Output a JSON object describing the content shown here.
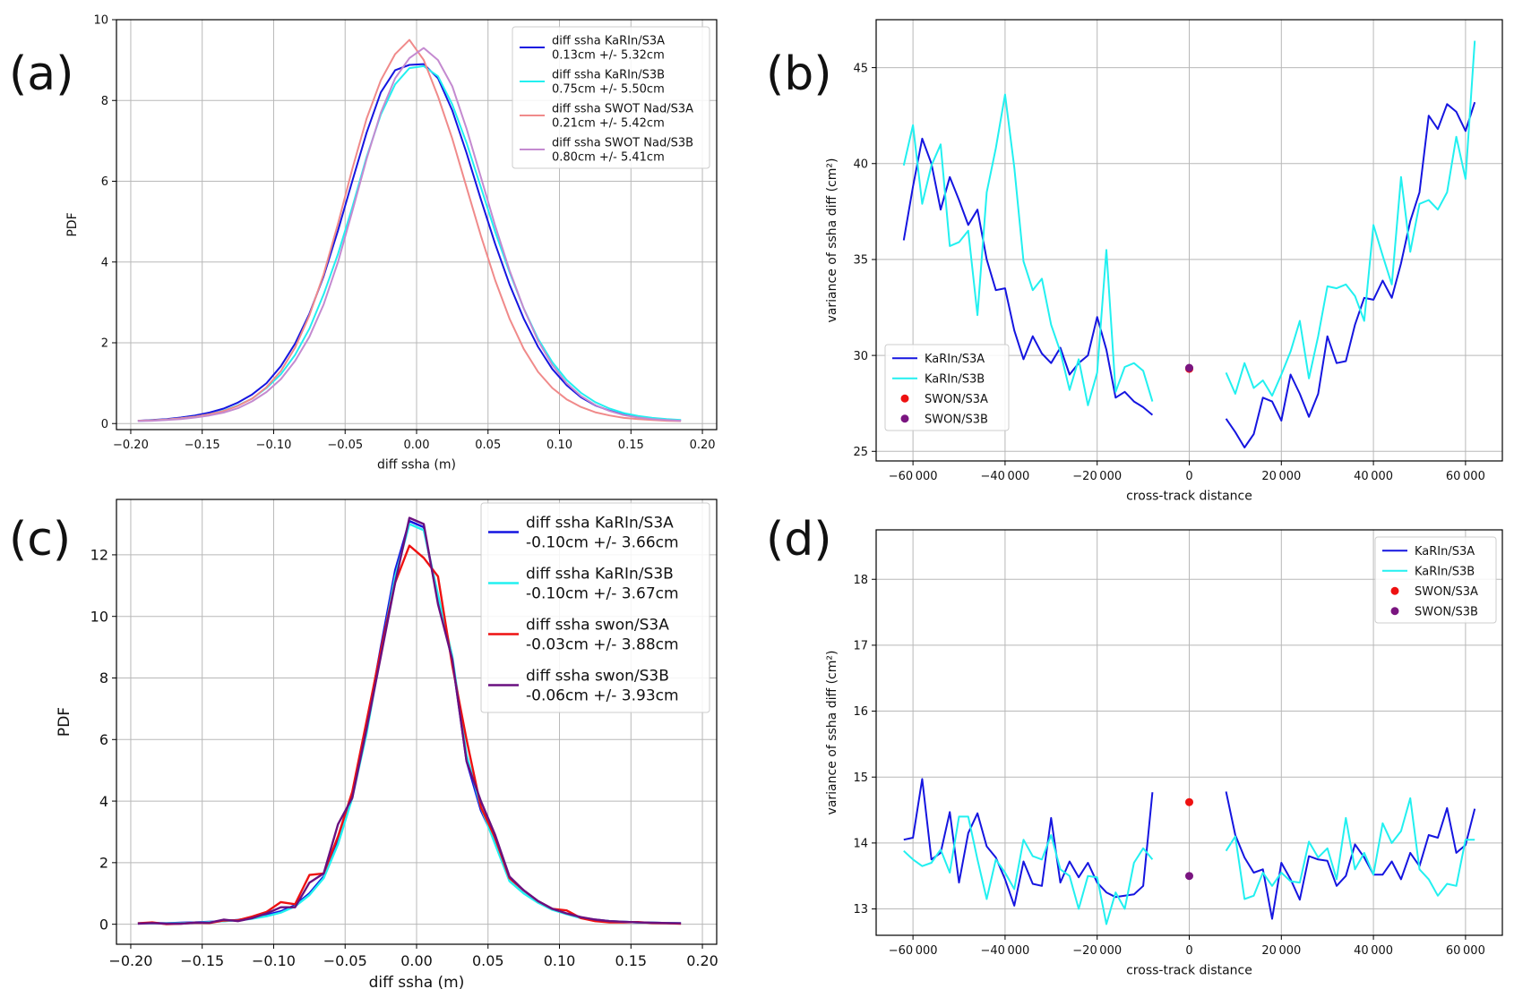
{
  "colors": {
    "KaRIn/S3A": "#1515e0",
    "KaRIn/S3B": "#22f0f0",
    "SWOT Nad/S3A": "#f08a8a",
    "SWOT Nad/S3B": "#c48ad0",
    "swon/S3A": "#ee1111",
    "swon/S3B": "#6a1080",
    "SWON/S3A": "#ee1111",
    "SWON/S3B": "#7a1580"
  },
  "chart_data": [
    {
      "panel_label": "(a)",
      "type": "line",
      "xlabel": "diff ssha (m)",
      "ylabel": "PDF",
      "xlim": [
        -0.21,
        0.21
      ],
      "ylim": [
        -0.15,
        10
      ],
      "xticks": [
        -0.2,
        -0.15,
        -0.1,
        -0.05,
        0.0,
        0.05,
        0.1,
        0.15,
        0.2
      ],
      "xtick_labels": [
        "−0.20",
        "−0.15",
        "−0.10",
        "−0.05",
        "0.00",
        "0.05",
        "0.10",
        "0.15",
        "0.20"
      ],
      "yticks": [
        0,
        2,
        4,
        6,
        8,
        10
      ],
      "ytick_labels": [
        "0",
        "2",
        "4",
        "6",
        "8",
        "10"
      ],
      "x": [
        -0.195,
        -0.185,
        -0.175,
        -0.165,
        -0.155,
        -0.145,
        -0.135,
        -0.125,
        -0.115,
        -0.105,
        -0.095,
        -0.085,
        -0.075,
        -0.065,
        -0.055,
        -0.045,
        -0.035,
        -0.025,
        -0.015,
        -0.005,
        0.005,
        0.015,
        0.025,
        0.035,
        0.045,
        0.055,
        0.065,
        0.075,
        0.085,
        0.095,
        0.105,
        0.115,
        0.125,
        0.135,
        0.145,
        0.155,
        0.165,
        0.175,
        0.185
      ],
      "series": [
        {
          "name": "KaRIn/S3A",
          "legend": [
            "diff ssha KaRIn/S3A",
            "0.13cm +/- 5.32cm"
          ],
          "values": [
            0.07,
            0.09,
            0.11,
            0.15,
            0.2,
            0.27,
            0.37,
            0.52,
            0.72,
            1.0,
            1.42,
            1.98,
            2.72,
            3.65,
            4.78,
            6.0,
            7.2,
            8.2,
            8.75,
            8.88,
            8.9,
            8.55,
            7.75,
            6.7,
            5.55,
            4.45,
            3.45,
            2.6,
            1.9,
            1.35,
            0.95,
            0.65,
            0.45,
            0.32,
            0.22,
            0.16,
            0.12,
            0.1,
            0.08
          ]
        },
        {
          "name": "KaRIn/S3B",
          "legend": [
            "diff ssha KaRIn/S3B",
            "0.75cm +/- 5.50cm"
          ],
          "values": [
            0.06,
            0.08,
            0.1,
            0.13,
            0.17,
            0.23,
            0.32,
            0.45,
            0.62,
            0.88,
            1.22,
            1.7,
            2.35,
            3.2,
            4.2,
            5.35,
            6.6,
            7.65,
            8.4,
            8.8,
            8.85,
            8.6,
            7.9,
            6.95,
            5.85,
            4.75,
            3.75,
            2.85,
            2.1,
            1.52,
            1.08,
            0.76,
            0.53,
            0.37,
            0.26,
            0.19,
            0.14,
            0.11,
            0.09
          ]
        },
        {
          "name": "SWOT Nad/S3A",
          "legend": [
            "diff ssha SWOT Nad/S3A",
            "0.21cm +/- 5.42cm"
          ],
          "values": [
            0.07,
            0.08,
            0.1,
            0.13,
            0.17,
            0.23,
            0.31,
            0.44,
            0.62,
            0.9,
            1.3,
            1.88,
            2.68,
            3.7,
            4.95,
            6.3,
            7.55,
            8.5,
            9.15,
            9.5,
            9.0,
            8.1,
            7.05,
            5.85,
            4.65,
            3.55,
            2.6,
            1.85,
            1.28,
            0.88,
            0.6,
            0.41,
            0.28,
            0.2,
            0.14,
            0.11,
            0.09,
            0.07,
            0.06
          ]
        },
        {
          "name": "SWOT Nad/S3B",
          "legend": [
            "diff ssha SWOT Nad/S3B",
            "0.80cm +/- 5.41cm"
          ],
          "values": [
            0.06,
            0.07,
            0.09,
            0.11,
            0.15,
            0.2,
            0.27,
            0.38,
            0.55,
            0.78,
            1.1,
            1.55,
            2.15,
            2.95,
            4.0,
            5.25,
            6.55,
            7.7,
            8.55,
            9.05,
            9.3,
            9.0,
            8.35,
            7.3,
            6.1,
            4.9,
            3.8,
            2.85,
            2.05,
            1.45,
            1.0,
            0.68,
            0.46,
            0.31,
            0.21,
            0.15,
            0.11,
            0.09,
            0.07
          ]
        }
      ]
    },
    {
      "panel_label": "(b)",
      "type": "line",
      "xlabel": "cross-track distance",
      "ylabel": "variance of ssha diff (cm²)",
      "xlim": [
        -68000,
        68000
      ],
      "ylim": [
        24.5,
        47.5
      ],
      "xticks": [
        -60000,
        -40000,
        -20000,
        0,
        20000,
        40000,
        60000
      ],
      "xtick_labels": [
        "−60 000",
        "−40 000",
        "−20 000",
        "0",
        "20 000",
        "40 000",
        "60 000"
      ],
      "yticks": [
        25,
        30,
        35,
        40,
        45
      ],
      "ytick_labels": [
        "25",
        "30",
        "35",
        "40",
        "45"
      ],
      "x": [
        -62000,
        -60000,
        -58000,
        -56000,
        -54000,
        -52000,
        -50000,
        -48000,
        -46000,
        -44000,
        -42000,
        -40000,
        -38000,
        -36000,
        -34000,
        -32000,
        -30000,
        -28000,
        -26000,
        -24000,
        -22000,
        -20000,
        -18000,
        -16000,
        -14000,
        -12000,
        -10000,
        -8000,
        8000,
        10000,
        12000,
        14000,
        16000,
        18000,
        20000,
        22000,
        24000,
        26000,
        28000,
        30000,
        32000,
        34000,
        36000,
        38000,
        40000,
        42000,
        44000,
        46000,
        48000,
        50000,
        52000,
        54000,
        56000,
        58000,
        60000,
        62000
      ],
      "series": [
        {
          "name": "KaRIn/S3A",
          "legend": [
            "KaRIn/S3A"
          ],
          "values": [
            36.0,
            38.8,
            41.3,
            40.0,
            37.6,
            39.3,
            38.1,
            36.8,
            37.6,
            35.0,
            33.4,
            33.5,
            31.3,
            29.8,
            31.0,
            30.1,
            29.6,
            30.4,
            29.0,
            29.6,
            30.0,
            32.0,
            30.3,
            27.8,
            28.1,
            27.6,
            27.3,
            26.9,
            26.7,
            26.0,
            25.2,
            25.9,
            27.8,
            27.6,
            26.6,
            29.0,
            28.0,
            26.8,
            28.0,
            31.0,
            29.6,
            29.7,
            31.6,
            33.0,
            32.9,
            33.9,
            33.0,
            34.8,
            37.0,
            38.5,
            42.5,
            41.8,
            43.1,
            42.7,
            41.7,
            43.2
          ]
        },
        {
          "name": "KaRIn/S3B",
          "legend": [
            "KaRIn/S3B"
          ],
          "values": [
            39.9,
            42.0,
            37.9,
            39.9,
            41.0,
            35.7,
            35.9,
            36.5,
            32.1,
            38.5,
            40.8,
            43.6,
            39.8,
            34.9,
            33.4,
            34.0,
            31.6,
            30.2,
            28.2,
            29.8,
            27.4,
            29.1,
            35.5,
            28.1,
            29.4,
            29.6,
            29.2,
            27.6,
            29.1,
            28.0,
            29.6,
            28.3,
            28.7,
            27.9,
            29.0,
            30.2,
            31.8,
            28.8,
            31.0,
            33.6,
            33.5,
            33.7,
            33.1,
            31.8,
            36.8,
            35.2,
            33.7,
            39.3,
            35.4,
            37.9,
            38.1,
            37.6,
            38.5,
            41.4,
            39.2,
            46.4
          ]
        },
        {
          "name": "SWON/S3A",
          "legend": [
            "SWON/S3A"
          ],
          "points": [
            [
              0,
              29.3
            ]
          ]
        },
        {
          "name": "SWON/S3B",
          "legend": [
            "SWON/S3B"
          ],
          "points": [
            [
              0,
              29.35
            ]
          ]
        }
      ]
    },
    {
      "panel_label": "(c)",
      "type": "line",
      "xlabel": "diff ssha (m)",
      "ylabel": "PDF",
      "xlim": [
        -0.21,
        0.21
      ],
      "ylim": [
        -0.65,
        13.8
      ],
      "xticks": [
        -0.2,
        -0.15,
        -0.1,
        -0.05,
        0.0,
        0.05,
        0.1,
        0.15,
        0.2
      ],
      "xtick_labels": [
        "−0.20",
        "−0.15",
        "−0.10",
        "−0.05",
        "0.00",
        "0.05",
        "0.10",
        "0.15",
        "0.20"
      ],
      "yticks": [
        0,
        2,
        4,
        6,
        8,
        10,
        12
      ],
      "ytick_labels": [
        "0",
        "2",
        "4",
        "6",
        "8",
        "10",
        "12"
      ],
      "x": [
        -0.195,
        -0.185,
        -0.175,
        -0.165,
        -0.155,
        -0.145,
        -0.135,
        -0.125,
        -0.115,
        -0.105,
        -0.095,
        -0.085,
        -0.075,
        -0.065,
        -0.055,
        -0.045,
        -0.035,
        -0.025,
        -0.015,
        -0.005,
        0.005,
        0.015,
        0.025,
        0.035,
        0.045,
        0.055,
        0.065,
        0.075,
        0.085,
        0.095,
        0.105,
        0.115,
        0.125,
        0.135,
        0.145,
        0.155,
        0.165,
        0.175,
        0.185
      ],
      "series": [
        {
          "name": "KaRIn/S3A",
          "legend": [
            "diff ssha KaRIn/S3A",
            "-0.10cm +/- 3.66cm"
          ],
          "values": [
            0.03,
            0.04,
            0.03,
            0.05,
            0.06,
            0.08,
            0.1,
            0.14,
            0.2,
            0.3,
            0.42,
            0.62,
            1.0,
            1.55,
            2.7,
            4.2,
            6.4,
            9.0,
            11.5,
            13.1,
            12.9,
            10.5,
            8.6,
            5.3,
            3.7,
            2.7,
            1.5,
            1.1,
            0.75,
            0.5,
            0.35,
            0.22,
            0.15,
            0.1,
            0.08,
            0.06,
            0.05,
            0.04,
            0.03
          ]
        },
        {
          "name": "KaRIn/S3B",
          "legend": [
            "diff ssha KaRIn/S3B",
            "-0.10cm +/- 3.67cm"
          ],
          "values": [
            0.03,
            0.03,
            0.03,
            0.04,
            0.05,
            0.07,
            0.1,
            0.13,
            0.18,
            0.26,
            0.38,
            0.58,
            0.95,
            1.5,
            2.6,
            4.1,
            6.2,
            8.8,
            11.3,
            13.0,
            12.8,
            10.7,
            8.7,
            5.5,
            3.8,
            2.6,
            1.4,
            1.0,
            0.7,
            0.47,
            0.33,
            0.2,
            0.14,
            0.1,
            0.08,
            0.06,
            0.05,
            0.04,
            0.03
          ]
        },
        {
          "name": "swon/S3A",
          "legend": [
            "diff ssha swon/S3A",
            "-0.03cm +/- 3.88cm"
          ],
          "values": [
            0.03,
            0.06,
            0.0,
            0.02,
            0.05,
            0.04,
            0.12,
            0.13,
            0.25,
            0.4,
            0.72,
            0.65,
            1.6,
            1.65,
            2.85,
            4.3,
            6.6,
            8.9,
            11.1,
            12.3,
            11.9,
            11.3,
            8.4,
            6.0,
            3.8,
            2.8,
            1.5,
            1.1,
            0.75,
            0.5,
            0.45,
            0.2,
            0.1,
            0.06,
            0.06,
            0.07,
            0.04,
            0.03,
            0.02
          ]
        },
        {
          "name": "swon/S3B",
          "legend": [
            "diff ssha swon/S3B",
            "-0.06cm +/- 3.93cm"
          ],
          "values": [
            0.02,
            0.04,
            0.02,
            0.02,
            0.05,
            0.05,
            0.15,
            0.1,
            0.2,
            0.35,
            0.55,
            0.55,
            1.35,
            1.65,
            3.25,
            4.1,
            6.35,
            8.7,
            11.1,
            13.2,
            13.0,
            10.4,
            8.6,
            5.3,
            4.0,
            2.9,
            1.55,
            1.1,
            0.75,
            0.5,
            0.35,
            0.23,
            0.15,
            0.1,
            0.08,
            0.06,
            0.05,
            0.04,
            0.03
          ]
        }
      ]
    },
    {
      "panel_label": "(d)",
      "type": "line",
      "xlabel": "cross-track distance",
      "ylabel": "variance of ssha diff (cm²)",
      "xlim": [
        -68000,
        68000
      ],
      "ylim": [
        12.6,
        18.75
      ],
      "xticks": [
        -60000,
        -40000,
        -20000,
        0,
        20000,
        40000,
        60000
      ],
      "xtick_labels": [
        "−60 000",
        "−40 000",
        "−20 000",
        "0",
        "20 000",
        "40 000",
        "60 000"
      ],
      "yticks": [
        13,
        14,
        15,
        16,
        17,
        18
      ],
      "ytick_labels": [
        "13",
        "14",
        "15",
        "16",
        "17",
        "18"
      ],
      "x": [
        -62000,
        -60000,
        -58000,
        -56000,
        -54000,
        -52000,
        -50000,
        -48000,
        -46000,
        -44000,
        -42000,
        -40000,
        -38000,
        -36000,
        -34000,
        -32000,
        -30000,
        -28000,
        -26000,
        -24000,
        -22000,
        -20000,
        -18000,
        -16000,
        -14000,
        -12000,
        -10000,
        -8000,
        8000,
        10000,
        12000,
        14000,
        16000,
        18000,
        20000,
        22000,
        24000,
        26000,
        28000,
        30000,
        32000,
        34000,
        36000,
        38000,
        40000,
        42000,
        44000,
        46000,
        48000,
        50000,
        52000,
        54000,
        56000,
        58000,
        60000,
        62000
      ],
      "series": [
        {
          "name": "KaRIn/S3A",
          "legend": [
            "KaRIn/S3A"
          ],
          "values": [
            14.05,
            14.08,
            14.97,
            13.75,
            13.85,
            14.47,
            13.4,
            14.15,
            14.45,
            13.95,
            13.78,
            13.45,
            13.05,
            13.72,
            13.38,
            13.35,
            14.38,
            13.4,
            13.72,
            13.48,
            13.7,
            13.4,
            13.25,
            13.18,
            13.2,
            13.22,
            13.35,
            14.77,
            14.78,
            14.12,
            13.78,
            13.55,
            13.6,
            12.85,
            13.7,
            13.45,
            13.14,
            13.8,
            13.75,
            13.73,
            13.35,
            13.5,
            13.98,
            13.78,
            13.52,
            13.52,
            13.72,
            13.45,
            13.85,
            13.65,
            14.12,
            14.08,
            14.53,
            13.85,
            13.97,
            14.52
          ]
        },
        {
          "name": "KaRIn/S3B",
          "legend": [
            "KaRIn/S3B"
          ],
          "values": [
            13.88,
            13.75,
            13.65,
            13.7,
            13.9,
            13.55,
            14.4,
            14.4,
            13.75,
            13.15,
            13.75,
            13.55,
            13.3,
            14.05,
            13.8,
            13.75,
            14.12,
            13.6,
            13.5,
            13.0,
            13.5,
            13.48,
            12.77,
            13.25,
            13.0,
            13.7,
            13.92,
            13.75,
            13.88,
            14.1,
            13.15,
            13.2,
            13.55,
            13.35,
            13.55,
            13.42,
            13.4,
            14.02,
            13.78,
            13.92,
            13.45,
            14.38,
            13.6,
            13.85,
            13.52,
            14.3,
            14.0,
            14.18,
            14.68,
            13.6,
            13.45,
            13.2,
            13.38,
            13.35,
            14.05,
            14.05
          ]
        },
        {
          "name": "SWON/S3A",
          "legend": [
            "SWON/S3A"
          ],
          "points": [
            [
              0,
              14.62
            ]
          ]
        },
        {
          "name": "SWON/S3B",
          "legend": [
            "SWON/S3B"
          ],
          "points": [
            [
              0,
              13.5
            ]
          ]
        }
      ]
    }
  ]
}
